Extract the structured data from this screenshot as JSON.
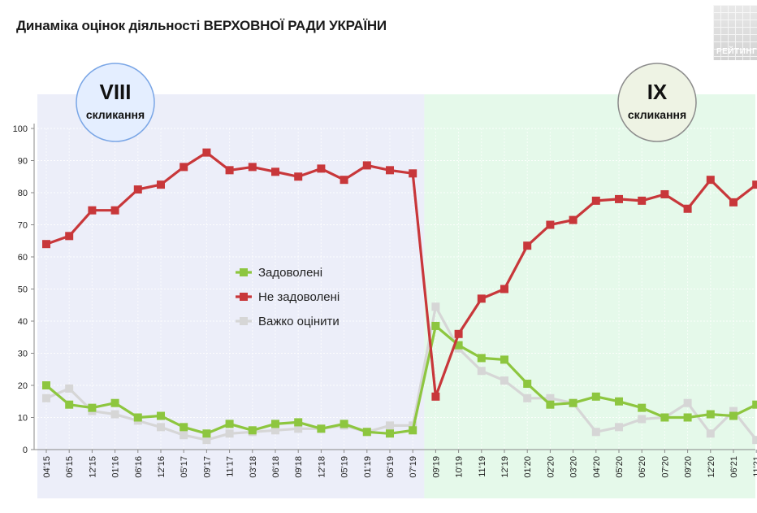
{
  "title": "Динаміка оцінок діяльності ВЕРХОВНОЇ РАДИ УКРАЇНИ",
  "logo_text": "РЕЙТИНГ",
  "badges": [
    {
      "roman": "VIII",
      "sub": "скликання",
      "fill": "#e4eeff",
      "stroke": "#7aa6e6"
    },
    {
      "roman": "IX",
      "sub": "скликання",
      "fill": "#eef3e4",
      "stroke": "#8c8c8c"
    }
  ],
  "colors": {
    "region_viii": "#eceef9",
    "region_ix": "#e5f9ea",
    "satisfied": "#8dc63f",
    "unsatisfied": "#c8373a",
    "hard": "#d6d6d6"
  },
  "chart_data": {
    "type": "line",
    "title": "Динаміка оцінок діяльності ВЕРХОВНОЇ РАДИ УКРАЇНИ",
    "xlabel": "",
    "ylabel": "",
    "ylim": [
      0,
      100
    ],
    "yticks": [
      0,
      10,
      20,
      30,
      40,
      50,
      60,
      70,
      80,
      90,
      100
    ],
    "grid": true,
    "legend_position": "center-left",
    "categories": [
      "04'15",
      "06'15",
      "12'15",
      "01'16",
      "06'16",
      "12'16",
      "05'17",
      "09'17",
      "11'17",
      "03'18",
      "06'18",
      "09'18",
      "12'18",
      "05'19",
      "01'19",
      "06'19",
      "07'19",
      "09'19",
      "10'19",
      "11'19",
      "12'19",
      "01'20",
      "02'20",
      "03'20",
      "04'20",
      "05'20",
      "06'20",
      "07'20",
      "09'20",
      "12'20",
      "06'21",
      "11'21"
    ],
    "series": [
      {
        "name": "Задоволені",
        "values": [
          20,
          14,
          13,
          14.5,
          10,
          10.5,
          7,
          5,
          8,
          6,
          8,
          8.5,
          6.5,
          8,
          5.5,
          5,
          6,
          38.5,
          32.5,
          28.5,
          28,
          20.5,
          14,
          14.5,
          16.5,
          15,
          13,
          10,
          10,
          11,
          10.5,
          14
        ]
      },
      {
        "name": "Не задоволені",
        "values": [
          64,
          66.5,
          74.5,
          74.5,
          81,
          82.5,
          88,
          92.5,
          87,
          88,
          86.5,
          85,
          87.5,
          84,
          88.5,
          87,
          86,
          16.5,
          36,
          47,
          50,
          63.5,
          70,
          71.5,
          77.5,
          78,
          77.5,
          79.5,
          75,
          84,
          77,
          82.5
        ]
      },
      {
        "name": "Важко оцінити",
        "values": [
          16,
          19,
          12,
          11,
          9,
          7,
          4.5,
          3,
          5,
          5.5,
          6,
          6.5,
          6.5,
          7.5,
          5.5,
          7.5,
          7.5,
          44.5,
          31.5,
          24.5,
          21.5,
          16,
          16,
          14.5,
          5.5,
          7,
          9.5,
          10,
          14.5,
          5,
          12,
          3
        ]
      }
    ]
  }
}
